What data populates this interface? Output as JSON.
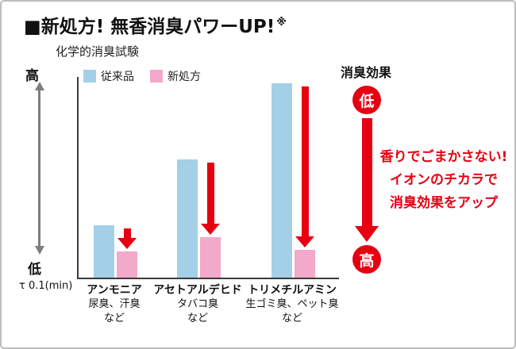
{
  "title": "■新処方! 無香消臭パワーUP!",
  "title_note": "※",
  "subtitle": "化学的消臭試験",
  "legend": {
    "conventional": "従来品",
    "new": "新処方"
  },
  "y_axis": {
    "high": "高",
    "low": "低",
    "unit": "τ 0.1(min)"
  },
  "right_panel": {
    "label": "消臭効果",
    "top_circle": "低",
    "bottom_circle": "高",
    "message_lines": [
      "香りでごまかさない!",
      "イオンのチカラで",
      "消臭効果をアップ"
    ]
  },
  "colors": {
    "conventional_bar": "#a3d0e6",
    "new_bar": "#f3a9c9",
    "accent_red": "#e60012",
    "axis_gray": "#7d7d7d"
  },
  "chart_data": {
    "type": "bar",
    "title": "化学的消臭試験",
    "categories": [
      "アンモニア",
      "アセトアルデヒド",
      "トリメチルアミン"
    ],
    "category_descriptions": [
      [
        "尿臭、汗臭",
        "など"
      ],
      [
        "タバコ臭",
        "など"
      ],
      [
        "生ゴミ臭、ペット臭",
        "など"
      ]
    ],
    "series": [
      {
        "name": "従来品",
        "color": "#a3d0e6",
        "values": [
          26,
          59,
          97
        ]
      },
      {
        "name": "新処方",
        "color": "#f3a9c9",
        "values": [
          13,
          20,
          14
        ]
      }
    ],
    "xlabel": "",
    "ylabel": "τ 0.1(min)",
    "ylim": [
      0,
      100
    ],
    "y_direction_labels": {
      "top": "高",
      "bottom": "低"
    },
    "legend_position": "top-left",
    "grid": false
  }
}
